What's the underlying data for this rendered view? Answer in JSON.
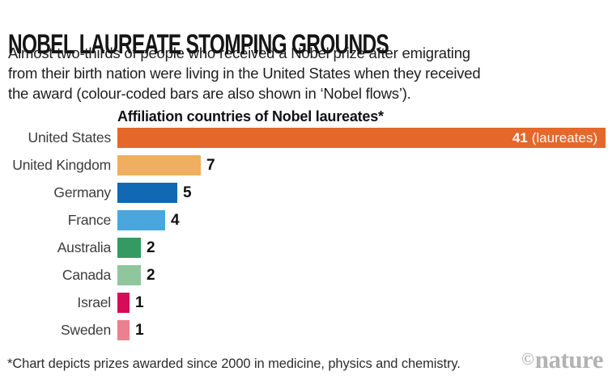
{
  "header": {
    "title": "NOBEL LAUREATE STOMPING GROUNDS",
    "subtitle_lines": [
      "Almost two-thirds of people who received a Nobel prize after emigrating",
      "from their birth nation were living in the United States when they received",
      "the award (colour-coded bars are also shown in ‘Nobel flows’)."
    ]
  },
  "chart_data": {
    "type": "bar",
    "orientation": "horizontal",
    "title": "Affiliation countries of Nobel laureates*",
    "categories": [
      "United States",
      "United Kingdom",
      "Germany",
      "France",
      "Australia",
      "Canada",
      "Israel",
      "Sweden"
    ],
    "values": [
      41,
      7,
      5,
      4,
      2,
      2,
      1,
      1
    ],
    "bar_colors": [
      "#e5672a",
      "#f0ae60",
      "#1168b3",
      "#4aa7de",
      "#349a62",
      "#8fc69e",
      "#d50c57",
      "#e9818e"
    ],
    "first_value_suffix": "(laureates)",
    "xlim": [
      0,
      41
    ],
    "grid": false,
    "legend": false,
    "value_labels": "end-of-bar, bold; first bar label inside bar in white"
  },
  "footnote": "*Chart depicts prizes awarded since 2000 in medicine, physics and chemistry.",
  "brand": {
    "copyright": "©",
    "name": "nature",
    "color": "#b3b3b3"
  }
}
